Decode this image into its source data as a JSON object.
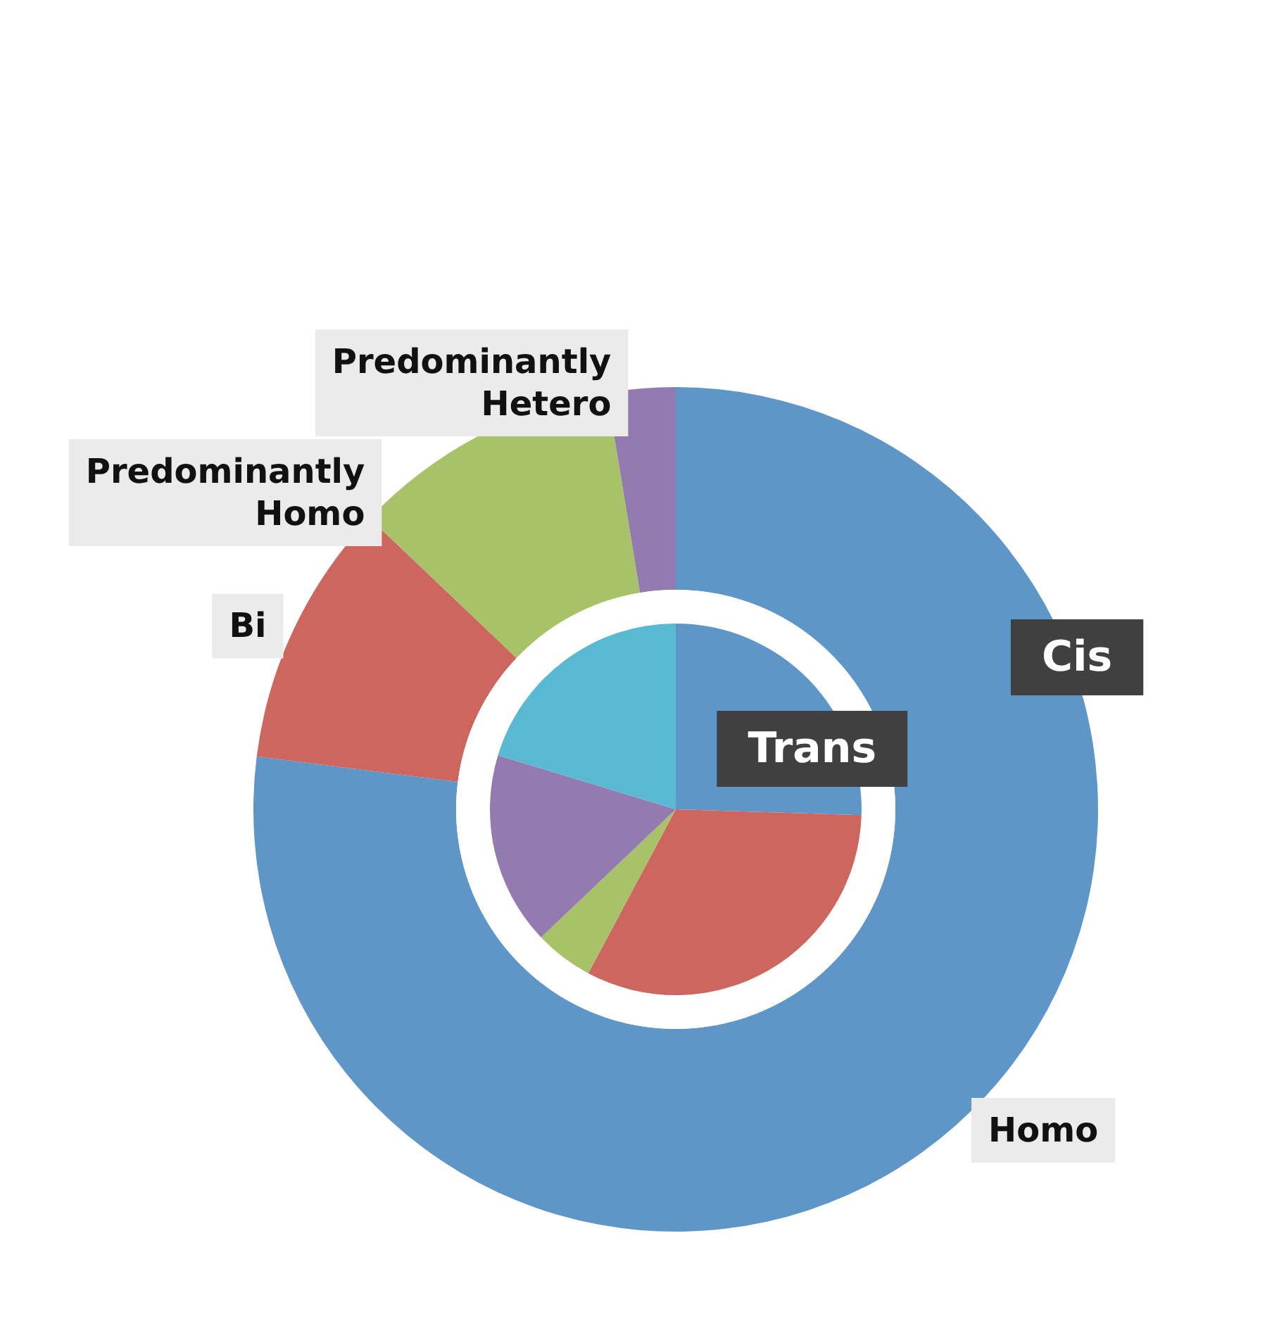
{
  "chart_data": {
    "type": "donut",
    "categories": [
      "Homo",
      "Bi",
      "Predominantly Homo",
      "Predominantly Hetero",
      null
    ],
    "series": [
      {
        "name": "Cis",
        "values": [
          77.0,
          10.1,
          10.3,
          2.6,
          null
        ],
        "colors": [
          "#5f96c8",
          "#cd665f",
          "#a8c26a",
          "#937bb0",
          "#59b8d2"
        ]
      },
      {
        "name": "Trans",
        "type": "pie",
        "values": [
          25.5,
          32.3,
          5.1,
          16.8,
          20.3
        ],
        "colors": [
          "#5f96c8",
          "#cd665f",
          "#a8c26a",
          "#937bb0",
          "#59b8d2"
        ]
      }
    ],
    "legend": false
  }
}
